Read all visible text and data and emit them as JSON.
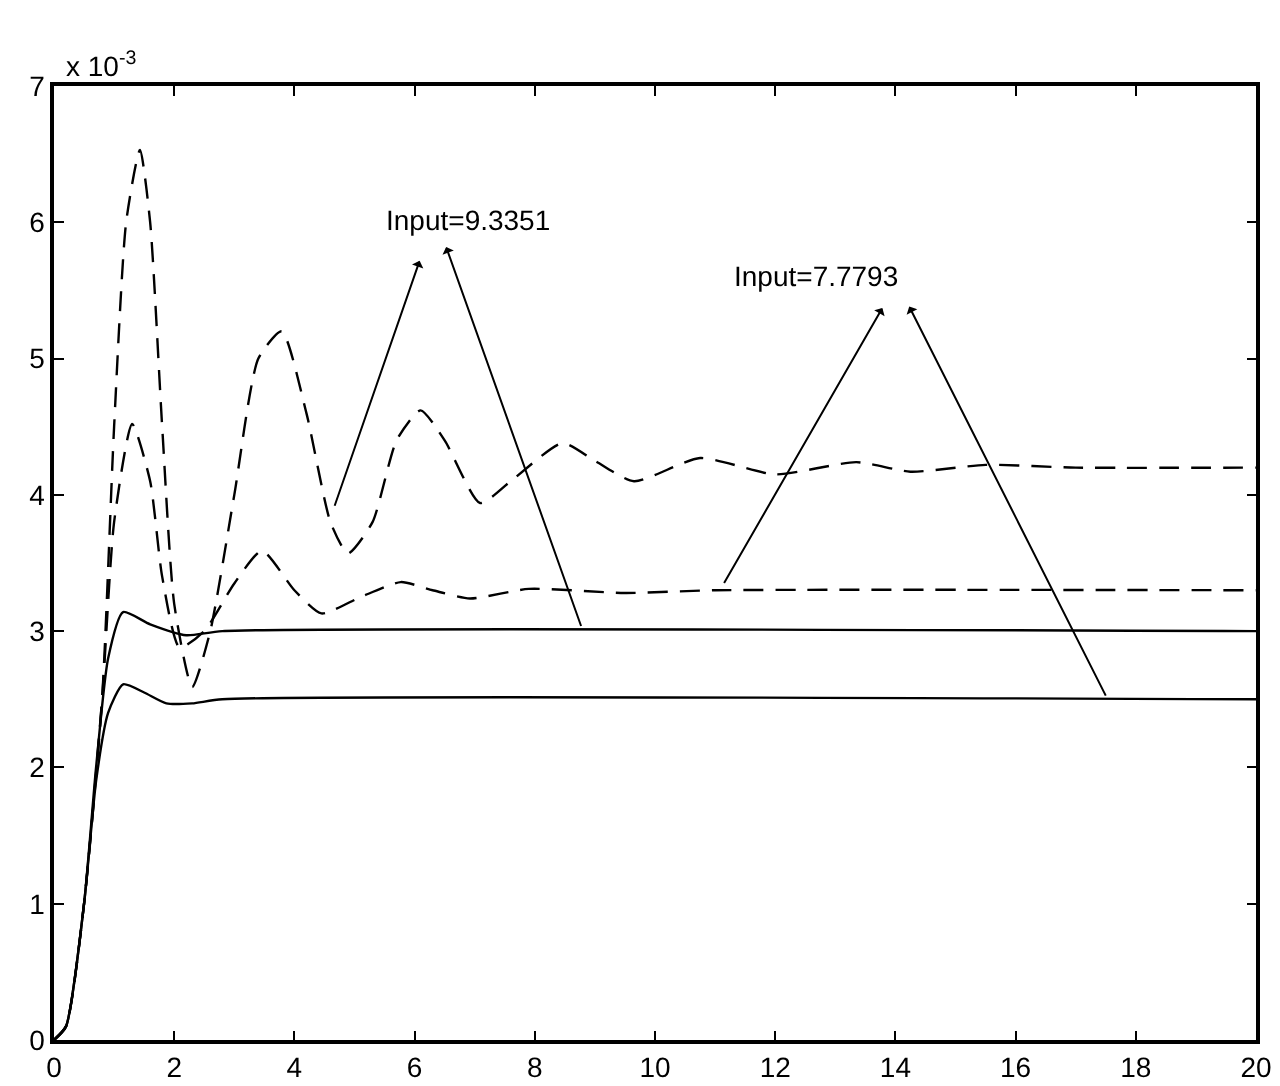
{
  "chart_data": {
    "type": "line",
    "series": [
      {
        "color": "#000000",
        "line_style": "dashed",
        "x": [
          0,
          0.2,
          0.5,
          0.8,
          1.0,
          1.2,
          1.43,
          1.6,
          1.8,
          2.0,
          2.3,
          2.6,
          3.0,
          3.4,
          3.79,
          4.2,
          4.6,
          4.89,
          5.3,
          5.7,
          6.1,
          6.5,
          7.09,
          7.6,
          8.46,
          9.0,
          9.65,
          10.75,
          12.0,
          13.35,
          14.25,
          15.5,
          17.0,
          20
        ],
        "values": [
          0,
          0.1,
          1.0,
          2.5,
          4.5,
          6.0,
          6.53,
          6.0,
          4.5,
          3.2,
          2.59,
          3.0,
          4.0,
          5.0,
          5.2,
          4.6,
          3.8,
          3.57,
          3.8,
          4.4,
          4.62,
          4.4,
          3.94,
          4.1,
          4.38,
          4.25,
          4.1,
          4.27,
          4.15,
          4.24,
          4.17,
          4.22,
          4.2,
          4.2
        ]
      },
      {
        "color": "#000000",
        "line_style": "dashed",
        "x": [
          0,
          0.2,
          0.5,
          0.8,
          1.0,
          1.3,
          1.6,
          1.8,
          2.09,
          2.5,
          3.0,
          3.46,
          4.0,
          4.45,
          5.1,
          5.77,
          6.3,
          6.92,
          7.9,
          9.5,
          11.0,
          20
        ],
        "values": [
          0,
          0.1,
          1.0,
          2.5,
          3.8,
          4.52,
          4.1,
          3.4,
          2.88,
          3.0,
          3.35,
          3.59,
          3.3,
          3.13,
          3.25,
          3.36,
          3.3,
          3.24,
          3.31,
          3.28,
          3.3,
          3.3
        ]
      },
      {
        "color": "#000000",
        "line_style": "solid",
        "x": [
          0,
          0.2,
          0.5,
          0.7,
          0.9,
          1.15,
          1.6,
          2.2,
          2.8,
          20
        ],
        "values": [
          0,
          0.1,
          1.0,
          2.0,
          2.8,
          3.14,
          3.05,
          2.97,
          3.0,
          3.0
        ]
      },
      {
        "color": "#000000",
        "line_style": "solid",
        "x": [
          0,
          0.2,
          0.5,
          0.7,
          0.9,
          1.15,
          1.5,
          1.87,
          2.3,
          2.8,
          20
        ],
        "values": [
          0,
          0.1,
          1.0,
          1.9,
          2.4,
          2.61,
          2.55,
          2.47,
          2.47,
          2.5,
          2.5
        ]
      }
    ],
    "xlim": [
      0,
      20
    ],
    "xticks": [
      0,
      2,
      4,
      6,
      8,
      10,
      12,
      14,
      16,
      18,
      20
    ],
    "ylim": [
      0,
      7
    ],
    "yticks": [
      0,
      1,
      2,
      3,
      4,
      5,
      6,
      7
    ],
    "annotations": [
      "x 10$^{-3}$",
      "Input=9.3351",
      "Input=7.7793"
    ]
  }
}
